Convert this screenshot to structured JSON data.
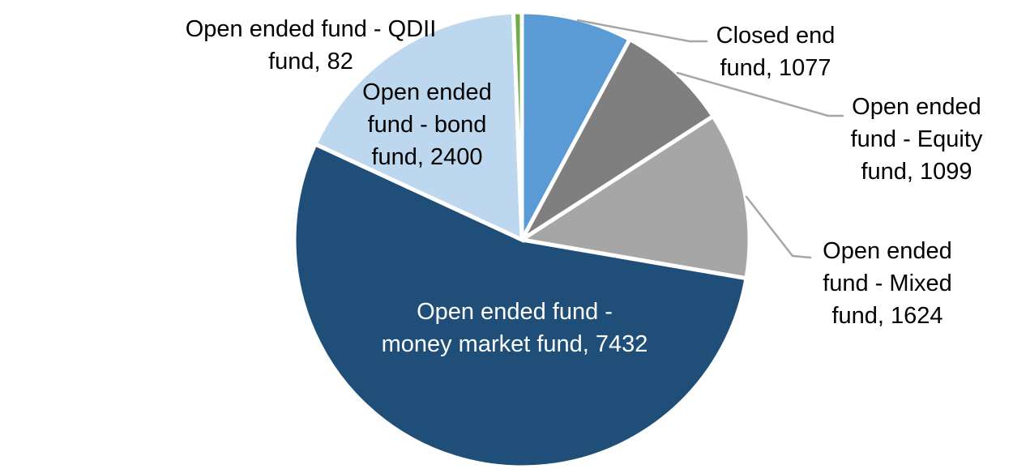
{
  "chart_data": {
    "type": "pie",
    "title": "",
    "start_angle_deg": 0,
    "direction": "clockwise",
    "legend_position": "none",
    "background_color": "#FFFFFF",
    "slice_border_color": "#FFFFFF",
    "leader_line_color": "#A6A6A6",
    "slices": [
      {
        "id": "closed-end",
        "label": "Closed end fund",
        "value": 1077,
        "color": "#5B9BD5",
        "label_text": "Closed end fund, 1077",
        "label_color": "#000000",
        "label_placement": "outside-right"
      },
      {
        "id": "equity",
        "label": "Open ended fund - Equity fund",
        "value": 1099,
        "color": "#7F7F7F",
        "label_text": "Open ended fund - Equity fund, 1099",
        "label_color": "#000000",
        "label_placement": "outside-right"
      },
      {
        "id": "mixed",
        "label": "Open ended fund - Mixed fund",
        "value": 1624,
        "color": "#A6A6A6",
        "label_text": "Open ended fund - Mixed fund, 1624",
        "label_color": "#000000",
        "label_placement": "outside-right"
      },
      {
        "id": "money-market",
        "label": "Open ended fund - money market fund",
        "value": 7432,
        "color": "#1F4E79",
        "label_text": "Open ended fund - money market fund, 7432",
        "label_color": "#FFFFFF",
        "label_placement": "inside"
      },
      {
        "id": "bond",
        "label": "Open ended fund - bond fund",
        "value": 2400,
        "color": "#BDD7EE",
        "label_text": "Open ended fund - bond fund, 2400",
        "label_color": "#000000",
        "label_placement": "inside"
      },
      {
        "id": "qdii",
        "label": "Open ended fund - QDII fund",
        "value": 82,
        "color": "#70AD47",
        "label_text": "Open ended fund - QDII fund, 82",
        "label_color": "#000000",
        "label_placement": "outside-left"
      }
    ]
  }
}
